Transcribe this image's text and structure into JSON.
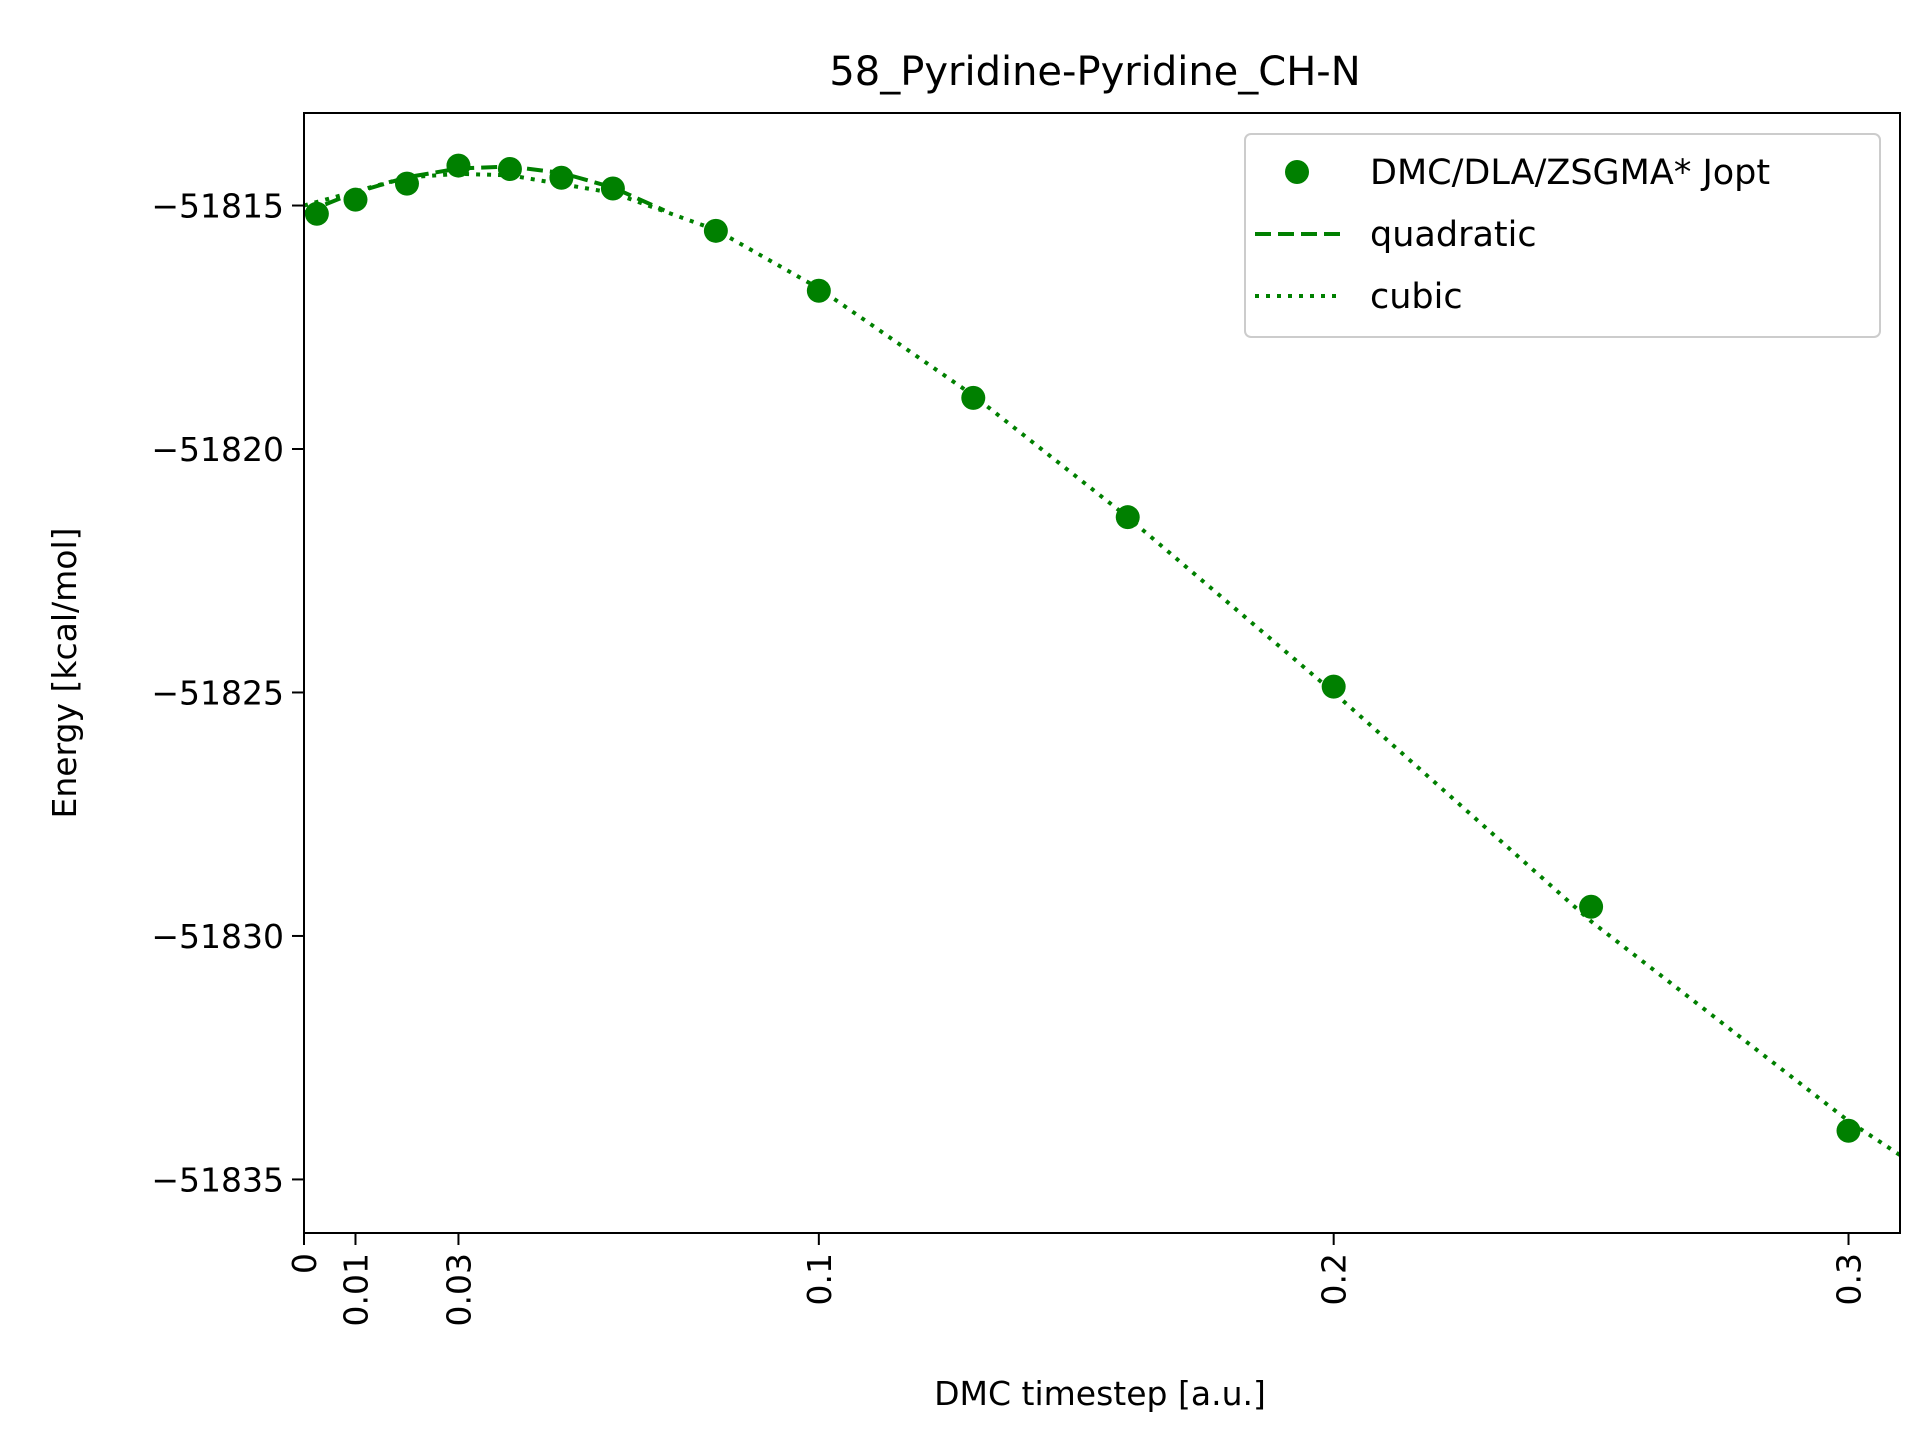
{
  "chart_data": {
    "type": "scatter",
    "title": "58_Pyridine-Pyridine_CH-N",
    "xlabel": "DMC timestep [a.u.]",
    "ylabel": "Energy [kcal/mol]",
    "xlim": [
      0,
      0.31
    ],
    "ylim": [
      -51836.1,
      -51813.1
    ],
    "x_ticks": [
      {
        "value": 0,
        "label": "0"
      },
      {
        "value": 0.01,
        "label": "0.01"
      },
      {
        "value": 0.03,
        "label": "0.03"
      },
      {
        "value": 0.1,
        "label": "0.1"
      },
      {
        "value": 0.2,
        "label": "0.2"
      },
      {
        "value": 0.3,
        "label": "0.3"
      }
    ],
    "y_ticks": [
      {
        "value": -51815,
        "label": "−51815"
      },
      {
        "value": -51820,
        "label": "−51820"
      },
      {
        "value": -51825,
        "label": "−51825"
      },
      {
        "value": -51830,
        "label": "−51830"
      },
      {
        "value": -51835,
        "label": "−51835"
      }
    ],
    "grid": false,
    "legend_position": "top-right",
    "color": "#008000",
    "series": [
      {
        "name": "DMC/DLA/ZSGMA* Jopt",
        "style": "markers",
        "x": [
          0.0025,
          0.01,
          0.02,
          0.03,
          0.04,
          0.05,
          0.06,
          0.08,
          0.1,
          0.13,
          0.16,
          0.2,
          0.25,
          0.3
        ],
        "y": [
          -51815.17,
          -51814.88,
          -51814.55,
          -51814.18,
          -51814.25,
          -51814.43,
          -51814.65,
          -51815.52,
          -51816.75,
          -51818.95,
          -51821.4,
          -51824.88,
          -51829.4,
          -51834.0
        ]
      },
      {
        "name": "quadratic",
        "style": "dashed",
        "x": [
          0,
          0.01,
          0.02,
          0.03,
          0.04,
          0.05,
          0.06,
          0.07
        ],
        "y": [
          -51815.15,
          -51814.73,
          -51814.42,
          -51814.24,
          -51814.2,
          -51814.33,
          -51814.63,
          -51815.1
        ]
      },
      {
        "name": "cubic",
        "style": "dotted",
        "x": [
          0,
          0.02,
          0.03,
          0.04,
          0.06,
          0.08,
          0.1,
          0.13,
          0.16,
          0.2,
          0.25,
          0.3,
          0.31
        ],
        "y": [
          -51815.0,
          -51814.42,
          -51814.35,
          -51814.38,
          -51814.74,
          -51815.5,
          -51816.7,
          -51818.9,
          -51821.4,
          -51825.0,
          -51829.7,
          -51833.8,
          -51834.5
        ]
      }
    ]
  }
}
